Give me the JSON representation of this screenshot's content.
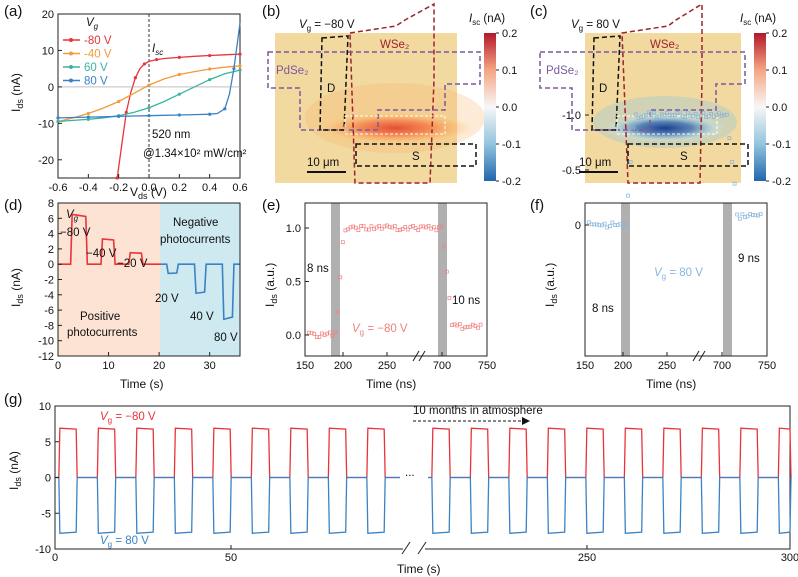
{
  "panel_labels": [
    "(a)",
    "(b)",
    "(c)",
    "(d)",
    "(e)",
    "(f)",
    "(g)"
  ],
  "colors": {
    "red": "#e8343a",
    "orange": "#f39a3a",
    "teal": "#3ab4a0",
    "blue": "#3b82c4",
    "pink": "#f08080",
    "lightblue": "#86b4dc",
    "gold": "#f1d9a0",
    "maroon": "#a0222a",
    "purple": "#7a5aa0"
  },
  "chart_data": [
    {
      "panel": "a",
      "type": "line",
      "xlabel": "V_ds (V)",
      "ylabel": "I_ds (nA)",
      "xlim": [
        -0.6,
        0.6
      ],
      "ylim": [
        -25,
        20
      ],
      "xticks": [
        "-0.6",
        "-0.4",
        "-0.2",
        "0.0",
        "0.2",
        "0.4",
        "0.6"
      ],
      "yticks": [
        "-20",
        "-10",
        "0",
        "10",
        "20"
      ],
      "legend_title": "Vg",
      "series": [
        {
          "name": "-80 V",
          "color": "#e8343a",
          "x": [
            -0.21,
            -0.18,
            -0.15,
            -0.12,
            -0.09,
            -0.06,
            -0.03,
            0.0,
            0.05,
            0.1,
            0.2,
            0.3,
            0.4,
            0.5,
            0.6
          ],
          "y": [
            -25,
            -16,
            -7,
            -1.5,
            2.5,
            5,
            6.3,
            7,
            7.5,
            7.8,
            8.1,
            8.4,
            8.6,
            8.8,
            9.0
          ]
        },
        {
          "name": "-40 V",
          "color": "#f39a3a",
          "x": [
            -0.6,
            -0.5,
            -0.4,
            -0.3,
            -0.2,
            -0.1,
            0.0,
            0.1,
            0.2,
            0.3,
            0.4,
            0.5,
            0.6
          ],
          "y": [
            -9.5,
            -8.5,
            -7.3,
            -5.8,
            -4.0,
            -1.8,
            0.5,
            2.2,
            3.4,
            4.2,
            4.9,
            5.4,
            5.8
          ]
        },
        {
          "name": "60 V",
          "color": "#3ab4a0",
          "x": [
            -0.6,
            -0.5,
            -0.4,
            -0.3,
            -0.2,
            -0.1,
            0.0,
            0.1,
            0.2,
            0.3,
            0.4,
            0.5,
            0.6
          ],
          "y": [
            -9.5,
            -9.2,
            -8.9,
            -8.5,
            -7.9,
            -7.0,
            -5.7,
            -4.0,
            -2.0,
            0.0,
            2.0,
            3.6,
            4.6
          ]
        },
        {
          "name": "80 V",
          "color": "#3b82c4",
          "x": [
            -0.6,
            -0.5,
            -0.4,
            -0.3,
            -0.2,
            -0.1,
            0.0,
            0.1,
            0.2,
            0.3,
            0.4,
            0.45,
            0.5,
            0.53,
            0.56,
            0.6
          ],
          "y": [
            -8.5,
            -8.4,
            -8.3,
            -8.2,
            -8.1,
            -8.0,
            -7.9,
            -7.8,
            -7.7,
            -7.6,
            -7.5,
            -7.3,
            -6.0,
            -2.0,
            5.0,
            17.5
          ]
        }
      ],
      "annotations": {
        "isc": "Isc",
        "wavelength": "520 nm",
        "power": "@1.34×10² mW/cm²"
      }
    },
    {
      "panel": "b",
      "type": "heatmap",
      "title": "Vg = −80 V",
      "labels": {
        "pdse2": "PdSe₂",
        "wse2": "WSe₂",
        "d": "D",
        "s": "S",
        "scale": "10 μm"
      },
      "colorbar": {
        "label": "Isc (nA)",
        "ticks": [
          "0.2",
          "0.1",
          "0.0",
          "-0.1",
          "-0.2"
        ],
        "min": -0.2,
        "max": 0.2
      },
      "hotspot_value": 0.2
    },
    {
      "panel": "c",
      "type": "heatmap",
      "title": "Vg = 80 V",
      "labels": {
        "pdse2": "PdSe₂",
        "wse2": "WSe₂",
        "d": "D",
        "s": "S",
        "scale": "10 μm"
      },
      "colorbar": {
        "label": "Isc (nA)",
        "ticks": [
          "0.2",
          "0.1",
          "0.0",
          "-0.1",
          "-0.2"
        ],
        "min": -0.2,
        "max": 0.2
      },
      "hotspot_value": -0.2
    },
    {
      "panel": "d",
      "type": "line",
      "xlabel": "Time (s)",
      "ylabel": "I_ds (nA)",
      "xlim": [
        0,
        36
      ],
      "ylim": [
        -12,
        8
      ],
      "xticks": [
        "0",
        "10",
        "20",
        "30"
      ],
      "yticks": [
        "8",
        "6",
        "4",
        "2",
        "0",
        "-2",
        "-4",
        "-6",
        "-8",
        "-10",
        "-12"
      ],
      "region_labels": {
        "positive": "Positive photocurrents",
        "negative": "Negative photocurrents"
      },
      "vg_labels": [
        "Vg",
        "−80 V",
        "−40 V",
        "−20 V",
        "20 V",
        "40 V",
        "80 V"
      ],
      "pulses": [
        {
          "start": 2.5,
          "end": 5.5,
          "value": 6.5
        },
        {
          "start": 8.5,
          "end": 11.0,
          "value": 3.3
        },
        {
          "start": 14.0,
          "end": 16.5,
          "value": 1.5
        },
        {
          "start": 21.5,
          "end": 23.5,
          "value": -1.2
        },
        {
          "start": 27.0,
          "end": 29.0,
          "value": -3.8
        },
        {
          "start": 32.5,
          "end": 34.5,
          "value": -7.2
        }
      ]
    },
    {
      "panel": "e",
      "type": "scatter",
      "xlabel": "Time (ns)",
      "ylabel": "I_ds (a.u.)",
      "xticks": [
        "150",
        "200",
        "250",
        "700",
        "750"
      ],
      "yticks": [
        "0.0",
        "0.5",
        "1.0"
      ],
      "rise_label": "8 ns",
      "fall_label": "10 ns",
      "series_label": "Vg = −80 V"
    },
    {
      "panel": "f",
      "type": "scatter",
      "xlabel": "Time (ns)",
      "ylabel": "I_ds (a.u.)",
      "xticks": [
        "150",
        "200",
        "250",
        "700",
        "750"
      ],
      "yticks": [
        "0",
        "-0.5",
        "-1.0"
      ],
      "rise_label": "8 ns",
      "fall_label": "9 ns",
      "series_label": "Vg = 80 V"
    },
    {
      "panel": "g",
      "type": "line",
      "xlabel": "Time (s)",
      "ylabel": "I_ds (nA)",
      "xticks": [
        "0",
        "50",
        "250",
        "300"
      ],
      "yticks": [
        "10",
        "5",
        "0",
        "-5",
        "-10"
      ],
      "annotation": "10 months in atmosphere",
      "ellipsis": "...",
      "series": [
        {
          "name": "Vg = −80 V",
          "color": "#e8343a",
          "on_value": 6.9
        },
        {
          "name": "Vg = 80 V",
          "color": "#3b82c4",
          "on_value": -7.8
        }
      ]
    }
  ]
}
